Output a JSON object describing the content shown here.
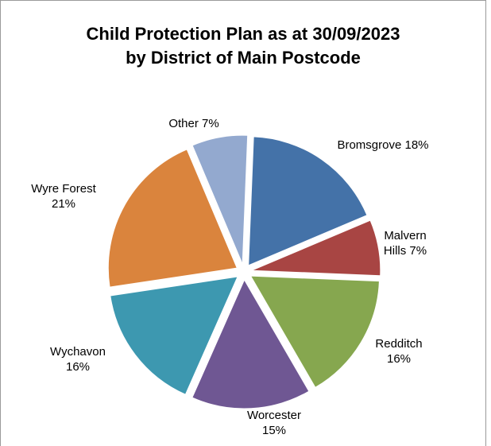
{
  "chart_data": {
    "type": "pie",
    "title_line1": "Child Protection Plan as at 30/09/2023",
    "title_line2": "by District of Main Postcode",
    "slices": [
      {
        "name": "Bromsgrove",
        "value": 18,
        "label": [
          "Bromsgrove 18%"
        ],
        "color": "#4472a8"
      },
      {
        "name": "Malvern Hills",
        "value": 7,
        "label": [
          "Malvern",
          "Hills 7%"
        ],
        "color": "#a84543"
      },
      {
        "name": "Redditch",
        "value": 16,
        "label": [
          "Redditch",
          "16%"
        ],
        "color": "#86a74f"
      },
      {
        "name": "Worcester",
        "value": 15,
        "label": [
          "Worcester",
          "15%"
        ],
        "color": "#6f5793"
      },
      {
        "name": "Wychavon",
        "value": 16,
        "label": [
          "Wychavon",
          "16%"
        ],
        "color": "#3d98b0"
      },
      {
        "name": "Wyre Forest",
        "value": 21,
        "label": [
          "Wyre Forest",
          "21%"
        ],
        "color": "#da843d"
      },
      {
        "name": "Other",
        "value": 7,
        "label": [
          "Other 7%"
        ],
        "color": "#93a9cf"
      }
    ],
    "legend": "none"
  }
}
